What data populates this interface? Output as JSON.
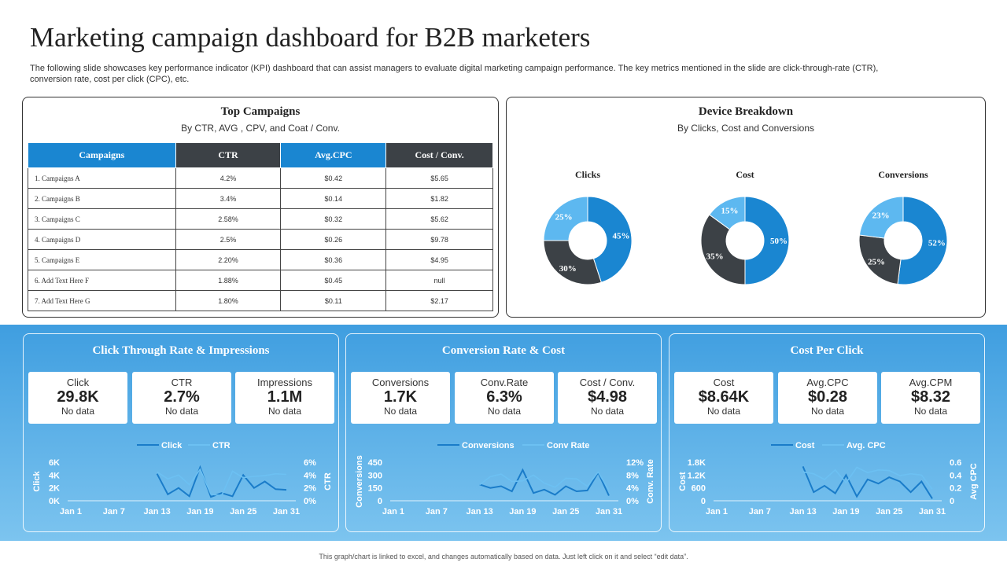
{
  "header": {
    "title": "Marketing campaign dashboard for B2B marketers",
    "description": "The following slide showcases key performance indicator (KPI) dashboard that can assist managers to evaluate digital marketing campaign performance. The key metrics mentioned in the slide are click-through-rate (CTR), conversion rate, cost per click (CPC), etc."
  },
  "top_campaigns": {
    "title": "Top Campaigns",
    "subtitle": "By CTR,  AVG , CPV, and Coat  / Conv.",
    "columns": [
      "Campaigns",
      "CTR",
      "Avg.CPC",
      "Cost / Conv."
    ],
    "rows": [
      [
        "1. Campaigns A",
        "4.2%",
        "$0.42",
        "$5.65"
      ],
      [
        "2. Campaigns B",
        "3.4%",
        "$0.14",
        "$1.82"
      ],
      [
        "3. Campaigns C",
        "2.58%",
        "$0.32",
        "$5.62"
      ],
      [
        "4. Campaigns D",
        "2.5%",
        "$0.26",
        "$9.78"
      ],
      [
        "5. Campaigns E",
        "2.20%",
        "$0.36",
        "$4.95"
      ],
      [
        "6. Add Text Here F",
        "1.88%",
        "$0.45",
        "null"
      ],
      [
        "7. Add Text Here G",
        "1.80%",
        "$0.11",
        "$2.17"
      ]
    ]
  },
  "device_breakdown": {
    "title": "Device Breakdown",
    "subtitle": "By Clicks, Cost and Conversions"
  },
  "kpis": {
    "ctr_title": "Click Through  Rate & Impressions",
    "conv_title": "Conversion Rate & Cost",
    "cpc_title": "Cost Per Click",
    "cards": [
      {
        "label": "Click",
        "value": "29.8K",
        "note": "No data"
      },
      {
        "label": "CTR",
        "value": "2.7%",
        "note": "No data"
      },
      {
        "label": "Impressions",
        "value": "1.1M",
        "note": "No data"
      },
      {
        "label": "Conversions",
        "value": "1.7K",
        "note": "No data"
      },
      {
        "label": "Conv.Rate",
        "value": "6.3%",
        "note": "No data"
      },
      {
        "label": "Cost / Conv.",
        "value": "$4.98",
        "note": "No data"
      },
      {
        "label": "Cost",
        "value": "$8.64K",
        "note": "No data"
      },
      {
        "label": "Avg.CPC",
        "value": "$0.28",
        "note": "No data"
      },
      {
        "label": "Avg.CPM",
        "value": "$8.32",
        "note": "No data"
      }
    ]
  },
  "footer": {
    "note": "This graph/chart is linked to excel, and changes automatically based on data. Just left click on it and select “edit data”."
  },
  "chart_data": [
    {
      "type": "pie",
      "title": "Clicks",
      "categories": [
        "Dark",
        "Light",
        "Blue"
      ],
      "values": [
        30,
        25,
        45
      ],
      "labels": [
        "30%",
        "25%",
        "45%"
      ],
      "colors": [
        "#3c4146",
        "#5db8f0",
        "#1a86d1"
      ]
    },
    {
      "type": "pie",
      "title": "Cost",
      "categories": [
        "Dark",
        "Light",
        "Blue"
      ],
      "values": [
        35,
        15,
        50
      ],
      "labels": [
        "35%",
        "15%",
        "50%"
      ],
      "colors": [
        "#3c4146",
        "#5db8f0",
        "#1a86d1"
      ]
    },
    {
      "type": "pie",
      "title": "Conversions",
      "categories": [
        "Dark",
        "Light",
        "Blue"
      ],
      "values": [
        25,
        23,
        52
      ],
      "labels": [
        "25%",
        "23%",
        "52%"
      ],
      "colors": [
        "#3c4146",
        "#5db8f0",
        "#1a86d1"
      ]
    },
    {
      "type": "line",
      "x_ticks": [
        "Jan 1",
        "Jan 7",
        "Jan 13",
        "Jan 19",
        "Jan 25",
        "Jan 31"
      ],
      "ylabel": "Click",
      "y2label": "CTR",
      "y_ticks": [
        "0K",
        "2K",
        "4K",
        "6K"
      ],
      "y2_ticks": [
        "0%",
        "2%",
        "4%",
        "6%"
      ],
      "ylim": [
        0,
        6000
      ],
      "y2lim": [
        0,
        6
      ],
      "x_start_day": 13,
      "series": [
        {
          "name": "Click",
          "axis": "left",
          "color": "#1a7cc9",
          "values": [
            4200,
            1000,
            2000,
            700,
            5200,
            600,
            1200,
            700,
            4000,
            2000,
            3000,
            1800,
            1700
          ]
        },
        {
          "name": "CTR",
          "axis": "right",
          "color": "#6cc0f2",
          "values": [
            4.5,
            3.4,
            4.0,
            2.5,
            4.9,
            1.0,
            0.8,
            4.6,
            3.6,
            3.8,
            3.9,
            4.2,
            4.1
          ]
        }
      ]
    },
    {
      "type": "line",
      "x_ticks": [
        "Jan 1",
        "Jan 7",
        "Jan 13",
        "Jan 19",
        "Jan 25",
        "Jan 31"
      ],
      "ylabel": "Conversions",
      "y2label": "Conv. Rate",
      "y_ticks": [
        "0",
        "150",
        "300",
        "450"
      ],
      "y2_ticks": [
        "0%",
        "4%",
        "8%",
        "12%"
      ],
      "ylim": [
        0,
        450
      ],
      "y2lim": [
        0,
        12
      ],
      "x_start_day": 13,
      "series": [
        {
          "name": "Conversions",
          "axis": "left",
          "color": "#1a7cc9",
          "values": [
            190,
            150,
            170,
            110,
            360,
            90,
            130,
            70,
            170,
            110,
            120,
            330,
            60
          ]
        },
        {
          "name": "Conv Rate",
          "axis": "right",
          "color": "#6cc0f2",
          "values": [
            5.0,
            7.5,
            8.3,
            6.0,
            6.2,
            8.0,
            5.5,
            4.2,
            7.0,
            6.8,
            4.5,
            9.0,
            3.2
          ]
        }
      ]
    },
    {
      "type": "line",
      "x_ticks": [
        "Jan 1",
        "Jan 7",
        "Jan 13",
        "Jan 19",
        "Jan 25",
        "Jan 31"
      ],
      "ylabel": "Cost",
      "y2label": "Avg CPC",
      "y_ticks": [
        "0",
        "600",
        "1.2K",
        "1.8K"
      ],
      "y2_ticks": [
        "0",
        "0.2",
        "0.4",
        "0.6"
      ],
      "ylim": [
        0,
        1800
      ],
      "y2lim": [
        0,
        0.6
      ],
      "x_start_day": 13,
      "series": [
        {
          "name": "Cost",
          "axis": "left",
          "color": "#1a7cc9",
          "values": [
            1600,
            400,
            700,
            350,
            1200,
            200,
            1000,
            800,
            1100,
            900,
            400,
            900,
            100
          ]
        },
        {
          "name": "Avg. CPC",
          "axis": "right",
          "color": "#6cc0f2",
          "values": [
            0.45,
            0.42,
            0.33,
            0.48,
            0.28,
            0.52,
            0.44,
            0.48,
            0.47,
            0.39,
            0.42,
            0.4,
            0.18
          ]
        }
      ]
    }
  ]
}
